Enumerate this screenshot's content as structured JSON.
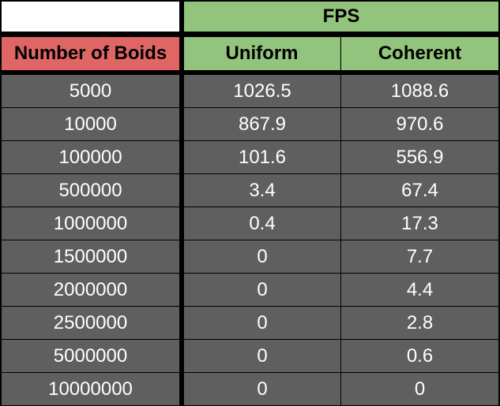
{
  "chart_data": {
    "type": "table",
    "group_header": "FPS",
    "columns": [
      "Number of Boids",
      "Uniform",
      "Coherent"
    ],
    "rows": [
      [
        "5000",
        "1026.5",
        "1088.6"
      ],
      [
        "10000",
        "867.9",
        "970.6"
      ],
      [
        "100000",
        "101.6",
        "556.9"
      ],
      [
        "500000",
        "3.4",
        "67.4"
      ],
      [
        "1000000",
        "0.4",
        "17.3"
      ],
      [
        "1500000",
        "0",
        "7.7"
      ],
      [
        "2000000",
        "0",
        "4.4"
      ],
      [
        "2500000",
        "0",
        "2.8"
      ],
      [
        "5000000",
        "0",
        "0.6"
      ],
      [
        "10000000",
        "0",
        "0"
      ]
    ]
  },
  "colors": {
    "header_red": "#e06666",
    "header_green": "#93c47d",
    "cell_gray": "#5f5f5f",
    "grid_black": "#000000"
  }
}
